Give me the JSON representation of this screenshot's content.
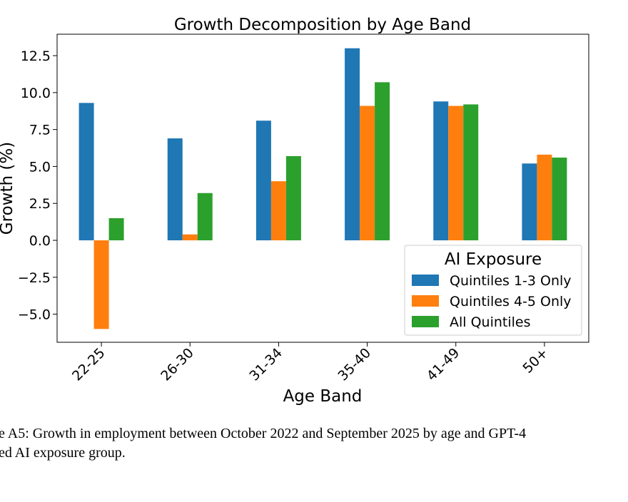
{
  "chart_data": {
    "type": "bar",
    "title": "Growth Decomposition by Age Band",
    "xlabel": "Age Band",
    "ylabel": "Growth (%)",
    "categories": [
      "22-25",
      "26-30",
      "31-34",
      "35-40",
      "41-49",
      "50+"
    ],
    "series": [
      {
        "name": "Quintiles 1-3 Only",
        "color": "#1f77b4",
        "values": [
          9.3,
          6.9,
          8.1,
          13.0,
          9.4,
          5.2
        ]
      },
      {
        "name": "Quintiles 4-5 Only",
        "color": "#ff7f0e",
        "values": [
          -6.0,
          0.4,
          4.0,
          9.1,
          9.1,
          5.8
        ]
      },
      {
        "name": "All Quintiles",
        "color": "#2ca02c",
        "values": [
          1.5,
          3.2,
          5.7,
          10.7,
          9.2,
          5.6
        ]
      }
    ],
    "ylim": [
      -6.9,
      13.95
    ],
    "yticks": [
      {
        "value": -5,
        "label": "−5.0"
      },
      {
        "value": -2.5,
        "label": "−2.5"
      },
      {
        "value": 0,
        "label": "0.0"
      },
      {
        "value": 2.5,
        "label": "2.5"
      },
      {
        "value": 5,
        "label": "5.0"
      },
      {
        "value": 7.5,
        "label": "7.5"
      },
      {
        "value": 10,
        "label": "10.0"
      },
      {
        "value": 12.5,
        "label": "12.5"
      }
    ],
    "legend_title": "AI Exposure",
    "legend_loc": "lower right",
    "grid": false
  },
  "caption": [
    "e A5: Growth in employment between October 2022 and September 2025 by age and GPT-4",
    "ed AI exposure group."
  ]
}
